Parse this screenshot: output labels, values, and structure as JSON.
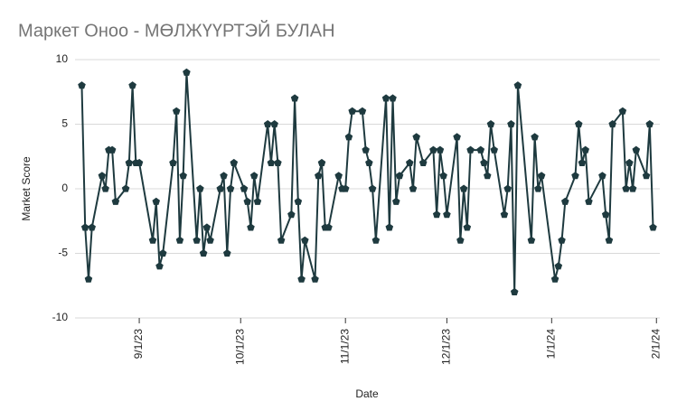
{
  "chart_data": {
    "type": "line",
    "title": "Маркет Оноо - МӨЛЖҮҮРТЭЙ БУЛАН",
    "xlabel": "Date",
    "ylabel": "Market Score",
    "color": "#1e3a3f",
    "x": [
      "8/15/23",
      "8/16/23",
      "8/17/23",
      "8/18/23",
      "8/21/23",
      "8/22/23",
      "8/23/23",
      "8/24/23",
      "8/25/23",
      "8/28/23",
      "8/29/23",
      "8/30/23",
      "8/31/23",
      "9/1/23",
      "9/5/23",
      "9/6/23",
      "9/7/23",
      "9/8/23",
      "9/11/23",
      "9/12/23",
      "9/13/23",
      "9/14/23",
      "9/15/23",
      "9/18/23",
      "9/19/23",
      "9/20/23",
      "9/21/23",
      "9/22/23",
      "9/25/23",
      "9/26/23",
      "9/27/23",
      "9/28/23",
      "9/29/23",
      "10/2/23",
      "10/3/23",
      "10/4/23",
      "10/5/23",
      "10/6/23",
      "10/9/23",
      "10/10/23",
      "10/11/23",
      "10/12/23",
      "10/13/23",
      "10/16/23",
      "10/17/23",
      "10/18/23",
      "10/19/23",
      "10/20/23",
      "10/23/23",
      "10/24/23",
      "10/25/23",
      "10/26/23",
      "10/27/23",
      "10/30/23",
      "10/31/23",
      "11/1/23",
      "11/2/23",
      "11/3/23",
      "11/6/23",
      "11/7/23",
      "11/8/23",
      "11/9/23",
      "11/10/23",
      "11/13/23",
      "11/14/23",
      "11/15/23",
      "11/16/23",
      "11/17/23",
      "11/20/23",
      "11/21/23",
      "11/22/23",
      "11/24/23",
      "11/27/23",
      "11/28/23",
      "11/29/23",
      "11/30/23",
      "12/1/23",
      "12/4/23",
      "12/5/23",
      "12/6/23",
      "12/7/23",
      "12/8/23",
      "12/11/23",
      "12/12/23",
      "12/13/23",
      "12/14/23",
      "12/15/23",
      "12/18/23",
      "12/19/23",
      "12/20/23",
      "12/21/23",
      "12/22/23",
      "12/26/23",
      "12/27/23",
      "12/28/23",
      "12/29/23",
      "1/2/24",
      "1/3/24",
      "1/4/24",
      "1/5/24",
      "1/8/24",
      "1/9/24",
      "1/10/24",
      "1/11/24",
      "1/12/24",
      "1/16/24",
      "1/17/24",
      "1/18/24",
      "1/19/24",
      "1/22/24",
      "1/23/24",
      "1/24/24",
      "1/25/24",
      "1/26/24",
      "1/29/24",
      "1/30/24",
      "1/31/24"
    ],
    "values": [
      8,
      -3,
      -7,
      -3,
      1,
      0,
      3,
      3,
      -1,
      0,
      2,
      8,
      2,
      2,
      -4,
      -1,
      -6,
      -5,
      2,
      6,
      -4,
      1,
      9,
      -4,
      0,
      -5,
      -3,
      -4,
      0,
      1,
      -5,
      0,
      2,
      0,
      -1,
      -3,
      1,
      -1,
      5,
      2,
      5,
      2,
      -4,
      -2,
      7,
      -1,
      -7,
      -4,
      -7,
      1,
      2,
      -3,
      -3,
      1,
      0,
      0,
      4,
      6,
      6,
      3,
      2,
      0,
      -4,
      7,
      -3,
      7,
      -1,
      1,
      2,
      0,
      4,
      2,
      3,
      -2,
      3,
      1,
      -2,
      4,
      -4,
      0,
      -3,
      3,
      3,
      2,
      1,
      5,
      3,
      -2,
      0,
      5,
      -8,
      8,
      -4,
      4,
      0,
      1,
      -7,
      -6,
      -4,
      -1,
      1,
      5,
      2,
      3,
      -1,
      1,
      -2,
      -4,
      5,
      6,
      0,
      2,
      0,
      3,
      1,
      5,
      -3
    ],
    "xlim": [
      "8/13/23",
      "2/2/24"
    ],
    "xticks": [
      "9/1/23",
      "10/1/23",
      "11/1/23",
      "12/1/23",
      "1/1/24",
      "2/1/24"
    ],
    "ylim": [
      -10,
      10
    ],
    "yticks": [
      -10,
      -5,
      0,
      5,
      10
    ],
    "grid": true
  }
}
